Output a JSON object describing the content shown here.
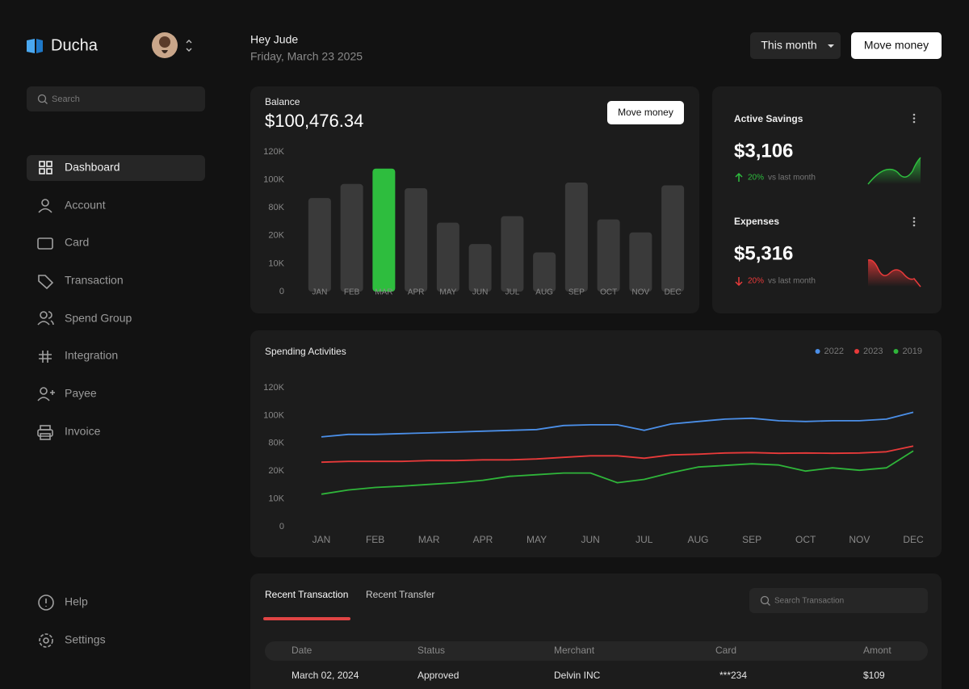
{
  "sidebar": {
    "brand": "Ducha",
    "search_placeholder": "Search",
    "nav": [
      "Dashboard",
      "Account",
      "Card",
      "Transaction",
      "Spend Group",
      "Integration",
      "Payee",
      "Invoice"
    ],
    "footer_nav": [
      "Help",
      "Settings"
    ]
  },
  "header": {
    "greeting": "Hey Jude",
    "date": "Friday, March 23 2025",
    "period": "This month",
    "action": "Move money"
  },
  "balance": {
    "label": "Balance",
    "amount": "$100,476.34",
    "action": "Move money",
    "chart_data": {
      "type": "bar",
      "categories": [
        "JAN",
        "FEB",
        "MAR",
        "APR",
        "MAY",
        "JUN",
        "JUL",
        "AUG",
        "SEP",
        "OCT",
        "NOV",
        "DEC"
      ],
      "values": [
        87000,
        97000,
        108000,
        94000,
        48000,
        17000,
        62000,
        14000,
        98000,
        55000,
        27000,
        96000
      ],
      "colors": [
        "#3a3a3a",
        "#3a3a3a",
        "#2ebd3e",
        "#3a3a3a",
        "#3a3a3a",
        "#3a3a3a",
        "#3a3a3a",
        "#3a3a3a",
        "#3a3a3a",
        "#3a3a3a",
        "#3a3a3a",
        "#3a3a3a"
      ],
      "ylim": [
        0,
        120000
      ],
      "yticks": [
        {
          "value": 0,
          "label": "0"
        },
        {
          "value": 10000,
          "label": "10K"
        },
        {
          "value": 20000,
          "label": "20K"
        },
        {
          "value": 80000,
          "label": "80K"
        },
        {
          "value": 100000,
          "label": "100K"
        },
        {
          "value": 120000,
          "label": "120K"
        }
      ],
      "grid": false
    }
  },
  "active_savings": {
    "title": "Active Savings",
    "amount": "$3,106",
    "change": "20%",
    "comparison": "vs last month"
  },
  "expenses": {
    "title": "Expenses",
    "amount": "$5,316",
    "change": "20%",
    "comparison": "vs last month"
  },
  "spending": {
    "chart_data": {
      "type": "line",
      "title": "Spending Activities",
      "x": [
        0,
        0.5,
        1,
        1.5,
        2,
        2.5,
        3,
        3.5,
        4,
        4.5,
        5,
        5.5,
        6,
        6.5,
        7,
        7.5,
        8,
        8.5,
        9,
        9.5,
        10,
        10.5,
        11
      ],
      "xlim": [
        0,
        11
      ],
      "xticks": [
        {
          "value": 0,
          "label": "JAN"
        },
        {
          "value": 1,
          "label": "FEB"
        },
        {
          "value": 2,
          "label": "MAR"
        },
        {
          "value": 3,
          "label": "APR"
        },
        {
          "value": 4,
          "label": "MAY"
        },
        {
          "value": 5,
          "label": "JUN"
        },
        {
          "value": 6,
          "label": "JUL"
        },
        {
          "value": 7,
          "label": "AUG"
        },
        {
          "value": 8,
          "label": "SEP"
        },
        {
          "value": 9,
          "label": "OCT"
        },
        {
          "value": 10,
          "label": "NOV"
        },
        {
          "value": 11,
          "label": "DEC"
        }
      ],
      "ylim": [
        0,
        120000
      ],
      "yticks": [
        {
          "value": 0,
          "label": "0"
        },
        {
          "value": 10000,
          "label": "10K"
        },
        {
          "value": 20000,
          "label": "20K"
        },
        {
          "value": 80000,
          "label": "80K"
        },
        {
          "value": 100000,
          "label": "100K"
        },
        {
          "value": 120000,
          "label": "120K"
        }
      ],
      "legend": "top-right",
      "series": [
        {
          "name": "2022",
          "color": "#4b8fe8",
          "values": [
            84600,
            86400,
            86400,
            87000,
            87500,
            88100,
            88700,
            89300,
            89900,
            92800,
            93300,
            93300,
            89300,
            93900,
            95700,
            97400,
            98000,
            96200,
            95700,
            96200,
            96200,
            97400,
            102300
          ]
        },
        {
          "name": "2023",
          "color": "#e83a3a",
          "values": [
            39100,
            40900,
            40900,
            41000,
            42600,
            42600,
            44300,
            44300,
            46100,
            49600,
            53000,
            53000,
            47800,
            54800,
            56500,
            59000,
            60000,
            58300,
            59000,
            58300,
            59000,
            61700,
            73900
          ]
        },
        {
          "name": "2019",
          "color": "#2fb53a",
          "values": [
            11700,
            13200,
            14100,
            14600,
            15200,
            15800,
            16700,
            18100,
            18700,
            19300,
            19300,
            15800,
            17000,
            19400,
            28700,
            32200,
            35700,
            33000,
            20000,
            27000,
            21700,
            27000,
            63500
          ]
        }
      ]
    }
  },
  "transactions": {
    "tabs": [
      "Recent Transaction",
      "Recent Transfer"
    ],
    "search_placeholder": "Search Transaction",
    "columns": [
      "Date",
      "Status",
      "Merchant",
      "Card",
      "Amont"
    ],
    "rows": [
      [
        "March 02, 2024",
        "Approved",
        "Delvin INC",
        "***234",
        "$109"
      ]
    ]
  }
}
